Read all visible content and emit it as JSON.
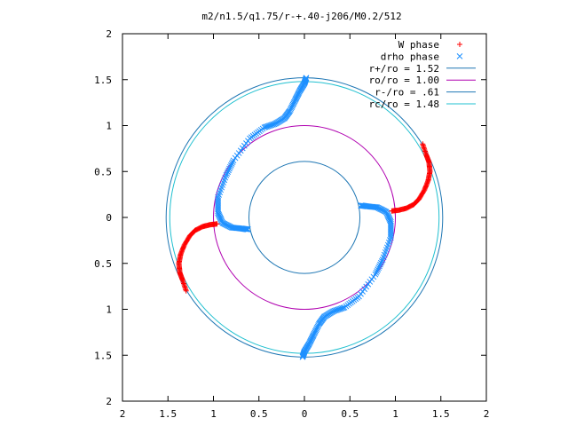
{
  "chart_data": {
    "type": "scatter",
    "title": "m2/n1.5/q1.75/r-+.40-j206/M0.2/512",
    "xlim": [
      -2,
      2
    ],
    "ylim": [
      -2,
      2
    ],
    "x_tick_values": [
      -2,
      -1.5,
      -1,
      -0.5,
      0,
      0.5,
      1,
      1.5,
      2
    ],
    "x_tick_labels": [
      "2",
      "1.5",
      "1",
      "0.5",
      "0",
      "0.5",
      "1",
      "1.5",
      "2"
    ],
    "y_tick_values": [
      2,
      1.5,
      1,
      0.5,
      0,
      -0.5,
      -1,
      -1.5,
      -2
    ],
    "y_tick_labels": [
      "2",
      "1.5",
      "1",
      "0.5",
      "0",
      "0.5",
      "1",
      "1.5",
      "2"
    ],
    "grid": false,
    "legend_placement": "top-right",
    "series": [
      {
        "name": "W phase",
        "marker": "plus",
        "color": "#ff0000",
        "arms": [
          {
            "points": [
              [
                1.3,
                0.8
              ],
              [
                1.34,
                0.68
              ],
              [
                1.37,
                0.6
              ],
              [
                1.38,
                0.5
              ],
              [
                1.36,
                0.4
              ],
              [
                1.32,
                0.3
              ],
              [
                1.26,
                0.2
              ],
              [
                1.2,
                0.14
              ],
              [
                1.12,
                0.1
              ],
              [
                1.04,
                0.08
              ],
              [
                0.96,
                0.07
              ]
            ]
          },
          {
            "points": [
              [
                -1.3,
                -0.8
              ],
              [
                -1.34,
                -0.68
              ],
              [
                -1.37,
                -0.6
              ],
              [
                -1.38,
                -0.5
              ],
              [
                -1.36,
                -0.4
              ],
              [
                -1.32,
                -0.3
              ],
              [
                -1.26,
                -0.2
              ],
              [
                -1.2,
                -0.14
              ],
              [
                -1.12,
                -0.1
              ],
              [
                -1.04,
                -0.08
              ],
              [
                -0.96,
                -0.07
              ]
            ]
          }
        ]
      },
      {
        "name": "drho phase",
        "marker": "cross",
        "color": "#1e90ff",
        "arms": [
          {
            "points": [
              [
                0.02,
                1.52
              ],
              [
                0.0,
                1.46
              ],
              [
                -0.05,
                1.38
              ],
              [
                -0.1,
                1.28
              ],
              [
                -0.16,
                1.16
              ],
              [
                -0.22,
                1.08
              ],
              [
                -0.32,
                1.02
              ],
              [
                -0.44,
                0.98
              ],
              [
                -0.6,
                0.86
              ],
              [
                -0.78,
                0.62
              ],
              [
                -0.86,
                0.46
              ],
              [
                -0.95,
                0.22
              ],
              [
                -0.95,
                0.05
              ],
              [
                -0.9,
                -0.06
              ],
              [
                -0.8,
                -0.11
              ],
              [
                -0.7,
                -0.12
              ],
              [
                -0.62,
                -0.13
              ]
            ]
          },
          {
            "points": [
              [
                -0.02,
                -1.52
              ],
              [
                0.0,
                -1.46
              ],
              [
                0.05,
                -1.38
              ],
              [
                0.1,
                -1.28
              ],
              [
                0.16,
                -1.16
              ],
              [
                0.22,
                -1.08
              ],
              [
                0.32,
                -1.02
              ],
              [
                0.44,
                -0.98
              ],
              [
                0.6,
                -0.86
              ],
              [
                0.78,
                -0.62
              ],
              [
                0.86,
                -0.46
              ],
              [
                0.95,
                -0.22
              ],
              [
                0.95,
                -0.05
              ],
              [
                0.9,
                0.06
              ],
              [
                0.8,
                0.11
              ],
              [
                0.7,
                0.12
              ],
              [
                0.62,
                0.13
              ]
            ]
          }
        ]
      }
    ],
    "circles": [
      {
        "name": "r+/ro = 1.52",
        "label": "r+/ro = 1.52",
        "radius": 1.52,
        "color": "#1f77b4"
      },
      {
        "name": "ro/ro = 1.00",
        "label": "ro/ro = 1.00",
        "radius": 1.0,
        "color": "#b000b0"
      },
      {
        "name": "r-/ro = .61",
        "label": "r-/ro = .61",
        "radius": 0.61,
        "color": "#1f77b4"
      },
      {
        "name": "rc/ro = 1.48",
        "label": "rc/ro = 1.48",
        "radius": 1.48,
        "color": "#20c0d0"
      }
    ]
  }
}
